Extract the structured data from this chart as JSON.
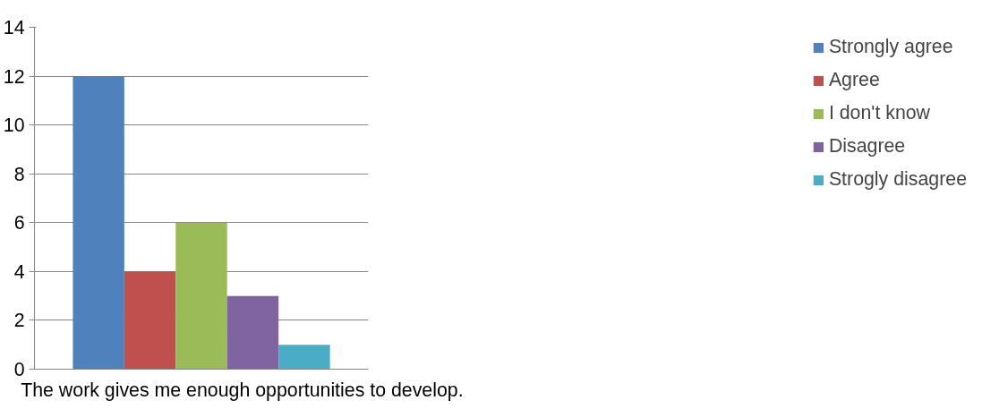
{
  "chart_data": {
    "type": "bar",
    "categories": [
      "The work gives me enough opportunities to develop."
    ],
    "series": [
      {
        "name": "Strongly agree",
        "color": "#4f81bd",
        "values": [
          12
        ]
      },
      {
        "name": "Agree",
        "color": "#c0504d",
        "values": [
          4
        ]
      },
      {
        "name": "I don't know",
        "color": "#9bbb59",
        "values": [
          6
        ]
      },
      {
        "name": "Disagree",
        "color": "#8064a2",
        "values": [
          3
        ]
      },
      {
        "name": "Strogly disagree",
        "color": "#4bacc6",
        "values": [
          1
        ]
      }
    ],
    "ylim": [
      0,
      14
    ],
    "yticks": [
      0,
      2,
      4,
      6,
      8,
      10,
      12,
      14
    ],
    "grid": "y",
    "legend": "right"
  }
}
